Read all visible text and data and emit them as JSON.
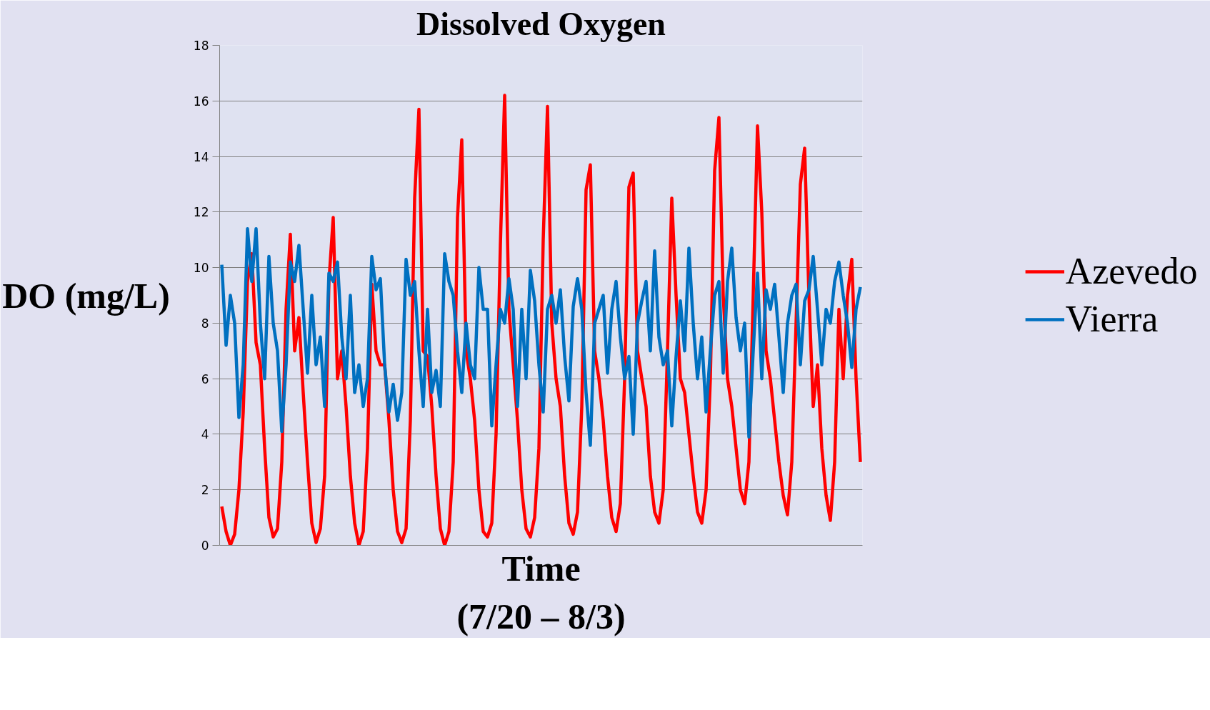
{
  "chart_data": {
    "type": "line",
    "title": "Dissolved Oxygen",
    "xlabel": "Time\n(7/20 – 8/3)",
    "ylabel": "DO (mg/L)",
    "categories": [
      null,
      null,
      null,
      null,
      null,
      null,
      null,
      null,
      null,
      null,
      null,
      null,
      null,
      null,
      null,
      null,
      null,
      null,
      null,
      null,
      null,
      null,
      null,
      null,
      null,
      null,
      null,
      null,
      null,
      null,
      null,
      null,
      null,
      null,
      null,
      null,
      null,
      null,
      null,
      null,
      null,
      null,
      null,
      null,
      null,
      null,
      null,
      null,
      null,
      null,
      null,
      null,
      null,
      null,
      null,
      null,
      null,
      null,
      null,
      null,
      null,
      null,
      null,
      null,
      null,
      null,
      null,
      null,
      null,
      null,
      null,
      null,
      null,
      null,
      null,
      null,
      null,
      null,
      null,
      null,
      null,
      null,
      null,
      null,
      null,
      null,
      null,
      null,
      null,
      null,
      null,
      null,
      null,
      null,
      null,
      null,
      null,
      null,
      null,
      null,
      null,
      null,
      null,
      null,
      null,
      null,
      null,
      null,
      null,
      null,
      null,
      null,
      null,
      null,
      null,
      null,
      null,
      null,
      null,
      null,
      null,
      null,
      null,
      null,
      null,
      null,
      null,
      null,
      null,
      null,
      null,
      null,
      null,
      null,
      null,
      null,
      null,
      null,
      null,
      null,
      null,
      null,
      null,
      null,
      null,
      null,
      null,
      null,
      null,
      null
    ],
    "series": [
      {
        "name": "Azevedo",
        "color": "#ff0000",
        "values": [
          1.4,
          0.5,
          0.0,
          0.4,
          2.0,
          4.8,
          9.5,
          10.5,
          7.3,
          6.5,
          3.5,
          1.0,
          0.3,
          0.6,
          3.0,
          8.5,
          11.2,
          7.0,
          8.2,
          5.5,
          3.0,
          0.8,
          0.1,
          0.6,
          2.5,
          9.5,
          11.8,
          6.0,
          7.0,
          5.0,
          2.5,
          0.8,
          0.0,
          0.5,
          3.5,
          9.4,
          7.0,
          6.5,
          6.5,
          4.5,
          2.0,
          0.5,
          0.1,
          0.6,
          4.5,
          12.5,
          15.7,
          7.0,
          6.8,
          5.0,
          2.5,
          0.6,
          0.0,
          0.5,
          3.0,
          11.8,
          14.6,
          7.0,
          6.0,
          4.5,
          2.0,
          0.5,
          0.3,
          0.8,
          4.0,
          10.8,
          16.2,
          8.5,
          6.5,
          4.5,
          2.0,
          0.6,
          0.3,
          1.0,
          3.5,
          11.0,
          15.8,
          8.0,
          6.0,
          5.0,
          2.5,
          0.8,
          0.4,
          1.2,
          5.0,
          12.8,
          13.7,
          7.0,
          6.0,
          4.5,
          2.5,
          1.0,
          0.5,
          1.5,
          6.0,
          12.9,
          13.4,
          7.0,
          6.0,
          5.0,
          2.5,
          1.2,
          0.8,
          2.0,
          7.0,
          12.5,
          9.0,
          6.0,
          5.5,
          4.0,
          2.5,
          1.2,
          0.8,
          2.0,
          6.0,
          13.5,
          15.4,
          9.0,
          6.0,
          5.0,
          3.5,
          2.0,
          1.5,
          3.0,
          9.0,
          15.1,
          12.0,
          7.0,
          6.0,
          4.5,
          3.0,
          1.8,
          1.1,
          3.0,
          8.0,
          13.0,
          14.3,
          9.0,
          5.0,
          6.5,
          3.5,
          1.8,
          0.9,
          3.0,
          8.5,
          6.0,
          9.0,
          10.3,
          6.0,
          3.0
        ]
      },
      {
        "name": "Vierra",
        "color": "#0070c0",
        "values": [
          10.1,
          7.2,
          9.0,
          8.0,
          4.6,
          6.5,
          11.4,
          9.5,
          11.4,
          8.0,
          6.0,
          10.4,
          8.0,
          7.0,
          4.1,
          6.5,
          10.2,
          9.5,
          10.8,
          8.5,
          6.2,
          9.0,
          6.5,
          7.5,
          5.0,
          9.8,
          9.5,
          10.2,
          7.5,
          6.0,
          9.0,
          5.5,
          6.5,
          5.0,
          6.0,
          10.4,
          9.2,
          9.6,
          6.5,
          4.8,
          5.8,
          4.5,
          5.5,
          10.3,
          9.0,
          9.5,
          7.0,
          5.0,
          8.5,
          5.5,
          6.3,
          5.0,
          10.5,
          9.5,
          9.0,
          7.0,
          5.5,
          8.0,
          6.5,
          6.0,
          10.0,
          8.5,
          8.5,
          4.3,
          6.5,
          8.5,
          8.0,
          9.6,
          8.5,
          5.0,
          8.5,
          6.0,
          9.9,
          8.8,
          6.5,
          4.8,
          8.5,
          9.0,
          8.0,
          9.2,
          6.8,
          5.2,
          8.6,
          9.6,
          8.5,
          5.5,
          3.6,
          8.0,
          8.5,
          9.0,
          6.2,
          8.5,
          9.5,
          7.5,
          6.0,
          6.8,
          4.0,
          8.0,
          8.8,
          9.5,
          7.0,
          10.6,
          7.5,
          6.5,
          7.0,
          4.3,
          6.8,
          8.8,
          7.0,
          10.7,
          8.0,
          6.0,
          7.5,
          4.8,
          7.0,
          9.0,
          9.5,
          6.2,
          9.5,
          10.7,
          8.2,
          7.0,
          8.0,
          3.9,
          7.0,
          9.8,
          6.0,
          9.2,
          8.5,
          9.4,
          7.5,
          5.5,
          8.0,
          9.0,
          9.4,
          6.5,
          8.8,
          9.2,
          10.4,
          8.5,
          6.5,
          8.5,
          8.0,
          9.5,
          10.2,
          9.0,
          8.0,
          6.4,
          8.5,
          9.3
        ]
      }
    ],
    "ylim": [
      0,
      18
    ],
    "yticks": [
      0,
      2,
      4,
      6,
      8,
      10,
      12,
      14,
      16,
      18
    ],
    "grid": "y",
    "legend": "right",
    "tick_labels": "y",
    "marker": "none",
    "line_style": "solid"
  }
}
